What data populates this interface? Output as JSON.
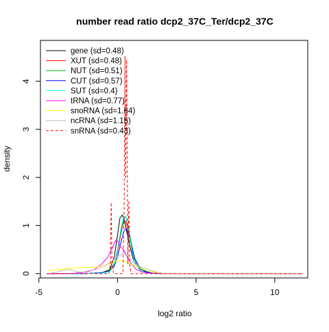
{
  "chart_data": {
    "type": "line",
    "title": "number read ratio dcp2_37C_Ter/dcp2_37C",
    "xlabel": "log2 ratio",
    "ylabel": "density",
    "xlim": [
      -4.9,
      12.1
    ],
    "ylim": [
      -0.09,
      4.85
    ],
    "xticks": [
      -5,
      0,
      5,
      10
    ],
    "yticks": [
      0,
      1,
      2,
      3,
      4
    ],
    "legend_position": "top-left",
    "series": [
      {
        "name": "gene (sd=0.48)",
        "color": "#000000",
        "dash": false,
        "x": [
          -4.5,
          -2.0,
          -1.0,
          -0.5,
          -0.2,
          0.0,
          0.15,
          0.3,
          0.45,
          0.6,
          0.8,
          1.0,
          1.3,
          1.6,
          2.0,
          2.5,
          3.0,
          6.0,
          11.8
        ],
        "y": [
          0.0,
          0.0,
          0.02,
          0.08,
          0.35,
          0.8,
          1.15,
          1.22,
          1.1,
          0.85,
          0.55,
          0.3,
          0.12,
          0.05,
          0.02,
          0.0,
          0.0,
          0.0,
          0.0
        ]
      },
      {
        "name": "XUT (sd=0.48)",
        "color": "#ff0000",
        "dash": false,
        "x": [
          -4.5,
          -2.0,
          -1.0,
          -0.5,
          -0.2,
          0.0,
          0.2,
          0.4,
          0.55,
          0.7,
          0.9,
          1.1,
          1.4,
          1.8,
          2.2,
          3.0,
          11.8
        ],
        "y": [
          0.0,
          0.0,
          0.02,
          0.05,
          0.2,
          0.45,
          0.8,
          1.1,
          1.08,
          0.85,
          0.55,
          0.3,
          0.12,
          0.04,
          0.01,
          0.0,
          0.0
        ]
      },
      {
        "name": "NUT (sd=0.51)",
        "color": "#00bb00",
        "dash": false,
        "x": [
          -4.5,
          -2.0,
          -1.0,
          -0.5,
          -0.2,
          0.0,
          0.2,
          0.4,
          0.55,
          0.7,
          0.9,
          1.1,
          1.4,
          1.8,
          2.2,
          3.0,
          11.8
        ],
        "y": [
          0.0,
          0.0,
          0.02,
          0.06,
          0.22,
          0.5,
          0.85,
          1.15,
          1.18,
          0.95,
          0.6,
          0.32,
          0.13,
          0.05,
          0.01,
          0.0,
          0.0
        ]
      },
      {
        "name": "CUT (sd=0.57)",
        "color": "#0000ff",
        "dash": false,
        "x": [
          -4.5,
          -2.0,
          -1.0,
          -0.5,
          -0.2,
          0.0,
          0.2,
          0.4,
          0.55,
          0.7,
          0.9,
          1.1,
          1.4,
          1.8,
          2.2,
          3.0,
          11.8
        ],
        "y": [
          0.0,
          0.0,
          0.02,
          0.05,
          0.15,
          0.35,
          0.62,
          0.88,
          0.94,
          0.82,
          0.55,
          0.3,
          0.12,
          0.04,
          0.01,
          0.0,
          0.0
        ]
      },
      {
        "name": "SUT (sd=0.4)",
        "color": "#00ffff",
        "dash": false,
        "x": [
          -4.5,
          -2.0,
          -1.0,
          -0.5,
          -0.2,
          0.0,
          0.2,
          0.4,
          0.55,
          0.7,
          0.9,
          1.1,
          1.4,
          1.8,
          2.2,
          3.0,
          11.8
        ],
        "y": [
          0.0,
          0.0,
          0.01,
          0.04,
          0.18,
          0.5,
          0.9,
          1.2,
          1.18,
          0.9,
          0.5,
          0.22,
          0.08,
          0.02,
          0.0,
          0.0,
          0.0
        ]
      },
      {
        "name": "tRNA (sd=0.77)",
        "color": "#ff00ff",
        "dash": false,
        "x": [
          -4.5,
          -3.0,
          -2.0,
          -1.5,
          -1.0,
          -0.6,
          -0.3,
          -0.1,
          0.0,
          0.2,
          0.4,
          0.6,
          0.9,
          1.2,
          1.6,
          2.0,
          3.0,
          11.8
        ],
        "y": [
          0.0,
          0.0,
          0.03,
          0.08,
          0.2,
          0.35,
          0.55,
          0.7,
          0.68,
          0.55,
          0.5,
          0.35,
          0.2,
          0.08,
          0.03,
          0.01,
          0.0,
          0.0
        ]
      },
      {
        "name": "snoRNA (sd=1.64)",
        "color": "#ffff00",
        "dash": false,
        "x": [
          -4.5,
          -4.0,
          -3.5,
          -3.0,
          -2.5,
          -2.0,
          -1.5,
          -1.0,
          -0.5,
          0.0,
          0.5,
          1.0,
          1.5,
          2.0,
          2.5,
          3.0,
          11.8
        ],
        "y": [
          0.06,
          0.07,
          0.09,
          0.11,
          0.12,
          0.13,
          0.13,
          0.15,
          0.2,
          0.28,
          0.25,
          0.18,
          0.1,
          0.05,
          0.02,
          0.0,
          0.0
        ]
      },
      {
        "name": "ncRNA (sd=1.15)",
        "color": "#bbbbbb",
        "dash": false,
        "x": [
          -4.5,
          -4.0,
          -3.5,
          -3.2,
          -3.0,
          -2.6,
          -2.2,
          -1.8,
          -1.2,
          -0.6,
          0.0,
          0.4,
          0.8,
          1.2,
          1.6,
          2.0,
          2.5,
          3.0,
          11.8
        ],
        "y": [
          0.0,
          0.02,
          0.06,
          0.09,
          0.08,
          0.04,
          0.03,
          0.06,
          0.1,
          0.2,
          0.35,
          0.42,
          0.3,
          0.18,
          0.12,
          0.08,
          0.03,
          0.0,
          0.0
        ]
      },
      {
        "name": "snRNA (sd=0.43)",
        "color": "#ff0000",
        "dash": true,
        "x": [
          -4.5,
          -0.55,
          -0.45,
          -0.4,
          -0.35,
          -0.25,
          0.35,
          0.42,
          0.48,
          0.52,
          0.58,
          0.66,
          0.72,
          0.78,
          0.85,
          11.8
        ],
        "y": [
          0.0,
          0.0,
          0.2,
          1.48,
          0.2,
          0.0,
          0.0,
          1.2,
          4.52,
          2.0,
          4.45,
          0.2,
          1.52,
          0.2,
          0.0,
          0.0
        ]
      }
    ]
  }
}
